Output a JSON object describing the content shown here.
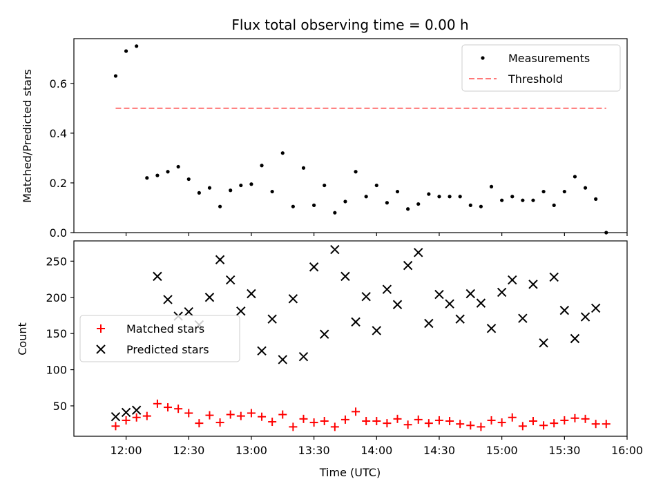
{
  "chart_data": [
    {
      "type": "scatter",
      "title": "Flux total observing time = 0.00 h",
      "ylabel": "Matched/Predicted stars",
      "xlabel": "",
      "xlim_minutes_from_midnight": [
        695,
        960
      ],
      "ylim": [
        0,
        0.78
      ],
      "yticks": [
        "0.0",
        "0.2",
        "0.4",
        "0.6"
      ],
      "legend_position": "upper-right",
      "series": [
        {
          "name": "Measurements",
          "style": "dot",
          "color": "#000000",
          "x": [
            "11:55",
            "12:00",
            "12:05",
            "12:10",
            "12:15",
            "12:20",
            "12:25",
            "12:30",
            "12:35",
            "12:40",
            "12:45",
            "12:50",
            "12:55",
            "13:00",
            "13:05",
            "13:10",
            "13:15",
            "13:20",
            "13:25",
            "13:30",
            "13:35",
            "13:40",
            "13:45",
            "13:50",
            "13:55",
            "14:00",
            "14:05",
            "14:10",
            "14:15",
            "14:20",
            "14:25",
            "14:30",
            "14:35",
            "14:40",
            "14:45",
            "14:50",
            "14:55",
            "15:00",
            "15:05",
            "15:10",
            "15:15",
            "15:20",
            "15:25",
            "15:30",
            "15:35",
            "15:40",
            "15:45",
            "15:50"
          ],
          "y": [
            0.63,
            0.73,
            0.75,
            0.22,
            0.23,
            0.245,
            0.265,
            0.215,
            0.16,
            0.18,
            0.105,
            0.17,
            0.19,
            0.195,
            0.27,
            0.165,
            0.32,
            0.105,
            0.26,
            0.11,
            0.19,
            0.08,
            0.125,
            0.245,
            0.145,
            0.19,
            0.12,
            0.165,
            0.095,
            0.115,
            0.155,
            0.145,
            0.145,
            0.145,
            0.11,
            0.105,
            0.185,
            0.13,
            0.145,
            0.13,
            0.13,
            0.165,
            0.11,
            0.165,
            0.225,
            0.18,
            0.135,
            0.0
          ]
        },
        {
          "name": "Threshold",
          "style": "dashed-line",
          "color": "#ff7777",
          "x": [
            "11:55",
            "15:50"
          ],
          "y": [
            0.5,
            0.5
          ]
        }
      ]
    },
    {
      "type": "scatter",
      "title": "",
      "ylabel": "Count",
      "xlabel": "Time (UTC)",
      "xlim_minutes_from_midnight": [
        695,
        960
      ],
      "ylim": [
        8,
        278
      ],
      "yticks": [
        "50",
        "100",
        "150",
        "200",
        "250"
      ],
      "xticks": [
        "12:00",
        "12:30",
        "13:00",
        "13:30",
        "14:00",
        "14:30",
        "15:00",
        "15:30",
        "16:00"
      ],
      "legend_position": "center-left",
      "series": [
        {
          "name": "Matched stars",
          "style": "plus",
          "color": "#ff0000",
          "x": [
            "11:55",
            "12:00",
            "12:05",
            "12:10",
            "12:15",
            "12:20",
            "12:25",
            "12:30",
            "12:35",
            "12:40",
            "12:45",
            "12:50",
            "12:55",
            "13:00",
            "13:05",
            "13:10",
            "13:15",
            "13:20",
            "13:25",
            "13:30",
            "13:35",
            "13:40",
            "13:45",
            "13:50",
            "13:55",
            "14:00",
            "14:05",
            "14:10",
            "14:15",
            "14:20",
            "14:25",
            "14:30",
            "14:35",
            "14:40",
            "14:45",
            "14:50",
            "14:55",
            "15:00",
            "15:05",
            "15:10",
            "15:15",
            "15:20",
            "15:25",
            "15:30",
            "15:35",
            "15:40",
            "15:45",
            "15:50"
          ],
          "y": [
            22,
            30,
            34,
            36,
            53,
            48,
            46,
            40,
            26,
            37,
            27,
            38,
            36,
            40,
            35,
            28,
            38,
            21,
            32,
            27,
            29,
            21,
            31,
            42,
            29,
            29,
            26,
            32,
            24,
            31,
            26,
            30,
            29,
            25,
            23,
            21,
            30,
            27,
            34,
            22,
            29,
            23,
            26,
            30,
            33,
            32,
            25,
            25
          ]
        },
        {
          "name": "Predicted stars",
          "style": "x",
          "color": "#000000",
          "x": [
            "11:55",
            "12:00",
            "12:05",
            "12:15",
            "12:20",
            "12:25",
            "12:30",
            "12:35",
            "12:40",
            "12:45",
            "12:50",
            "12:55",
            "13:00",
            "13:05",
            "13:10",
            "13:15",
            "13:20",
            "13:25",
            "13:30",
            "13:35",
            "13:40",
            "13:45",
            "13:50",
            "13:55",
            "14:00",
            "14:05",
            "14:10",
            "14:15",
            "14:20",
            "14:25",
            "14:30",
            "14:35",
            "14:40",
            "14:45",
            "14:50",
            "14:55",
            "15:00",
            "15:05",
            "15:10",
            "15:15",
            "15:20",
            "15:25",
            "15:30",
            "15:35",
            "15:40",
            "15:45"
          ],
          "y": [
            35,
            41,
            44,
            229,
            197,
            174,
            180,
            162,
            200,
            252,
            224,
            181,
            205,
            126,
            170,
            114,
            198,
            118,
            242,
            149,
            266,
            229,
            166,
            201,
            154,
            211,
            190,
            244,
            262,
            164,
            204,
            191,
            170,
            205,
            192,
            157,
            207,
            224,
            171,
            218,
            137,
            228,
            182,
            143,
            173,
            185
          ]
        }
      ]
    }
  ]
}
